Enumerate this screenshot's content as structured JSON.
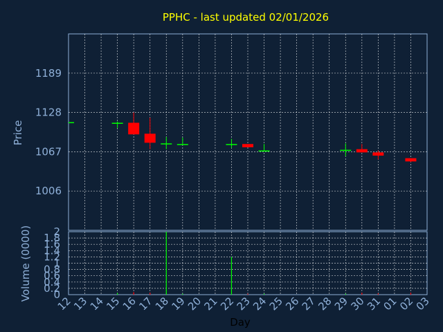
{
  "title": "PPHC - last updated 02/01/2026",
  "colors": {
    "background": "#0f2035",
    "title": "#ffff00",
    "axis_text": "#8fb0d8",
    "grid": "#ffffff",
    "up": "#00ff00",
    "down": "#ff0000"
  },
  "chart_data": [
    {
      "type": "candlestick",
      "ylabel": "Price",
      "ylim": [
        945,
        1250
      ],
      "yticks": [
        1006,
        1067,
        1128,
        1189
      ],
      "x_labels": [
        "12",
        "13",
        "14",
        "15",
        "16",
        "17",
        "18",
        "19",
        "20",
        "21",
        "22",
        "23",
        "24",
        "25",
        "26",
        "27",
        "28",
        "29",
        "30",
        "31",
        "01",
        "02",
        "03"
      ],
      "grid": true,
      "candles": [
        {
          "day": "12",
          "open": 1113,
          "high": 1113,
          "low": 1113,
          "close": 1113
        },
        {
          "day": "15",
          "open": 1112,
          "high": 1114,
          "low": 1104,
          "close": 1112
        },
        {
          "day": "16",
          "open": 1112,
          "high": 1128,
          "low": 1094,
          "close": 1094
        },
        {
          "day": "17",
          "open": 1095,
          "high": 1120,
          "low": 1071,
          "close": 1081
        },
        {
          "day": "18",
          "open": 1080,
          "high": 1090,
          "low": 1071,
          "close": 1080
        },
        {
          "day": "19",
          "open": 1079,
          "high": 1089,
          "low": 1079,
          "close": 1079
        },
        {
          "day": "22",
          "open": 1079,
          "high": 1087,
          "low": 1073,
          "close": 1079
        },
        {
          "day": "23",
          "open": 1079,
          "high": 1079,
          "low": 1074,
          "close": 1074
        },
        {
          "day": "24",
          "open": 1069,
          "high": 1079,
          "low": 1069,
          "close": 1069
        },
        {
          "day": "29",
          "open": 1070,
          "high": 1080,
          "low": 1060,
          "close": 1070
        },
        {
          "day": "30",
          "open": 1071,
          "high": 1079,
          "low": 1066,
          "close": 1066
        },
        {
          "day": "31",
          "open": 1066,
          "high": 1069,
          "low": 1055,
          "close": 1061
        },
        {
          "day": "02",
          "open": 1057,
          "high": 1057,
          "low": 1051,
          "close": 1052
        }
      ]
    },
    {
      "type": "bar",
      "xlabel": "Day",
      "ylabel": "Volume (0000)",
      "ylim": [
        0,
        2
      ],
      "yticks": [
        "0",
        "0.2",
        "0.4",
        "0.6",
        "0.8",
        "1",
        "1.2",
        "1.4",
        "1.6",
        "1.8",
        "2"
      ],
      "x_labels": [
        "12",
        "13",
        "14",
        "15",
        "16",
        "17",
        "18",
        "19",
        "20",
        "21",
        "22",
        "23",
        "24",
        "25",
        "26",
        "27",
        "28",
        "29",
        "30",
        "31",
        "01",
        "02",
        "03"
      ],
      "grid": true,
      "bars": [
        {
          "day": "15",
          "value": 0.05,
          "direction": "up"
        },
        {
          "day": "16",
          "value": 0.08,
          "direction": "down"
        },
        {
          "day": "17",
          "value": 0.06,
          "direction": "down"
        },
        {
          "day": "18",
          "value": 2.0,
          "direction": "up"
        },
        {
          "day": "19",
          "value": 0.03,
          "direction": "up"
        },
        {
          "day": "22",
          "value": 1.2,
          "direction": "up"
        },
        {
          "day": "23",
          "value": 0.03,
          "direction": "down"
        },
        {
          "day": "24",
          "value": 0.03,
          "direction": "up"
        },
        {
          "day": "29",
          "value": 0.03,
          "direction": "up"
        },
        {
          "day": "30",
          "value": 0.06,
          "direction": "down"
        },
        {
          "day": "31",
          "value": 0.04,
          "direction": "down"
        },
        {
          "day": "02",
          "value": 0.06,
          "direction": "down"
        }
      ]
    }
  ]
}
